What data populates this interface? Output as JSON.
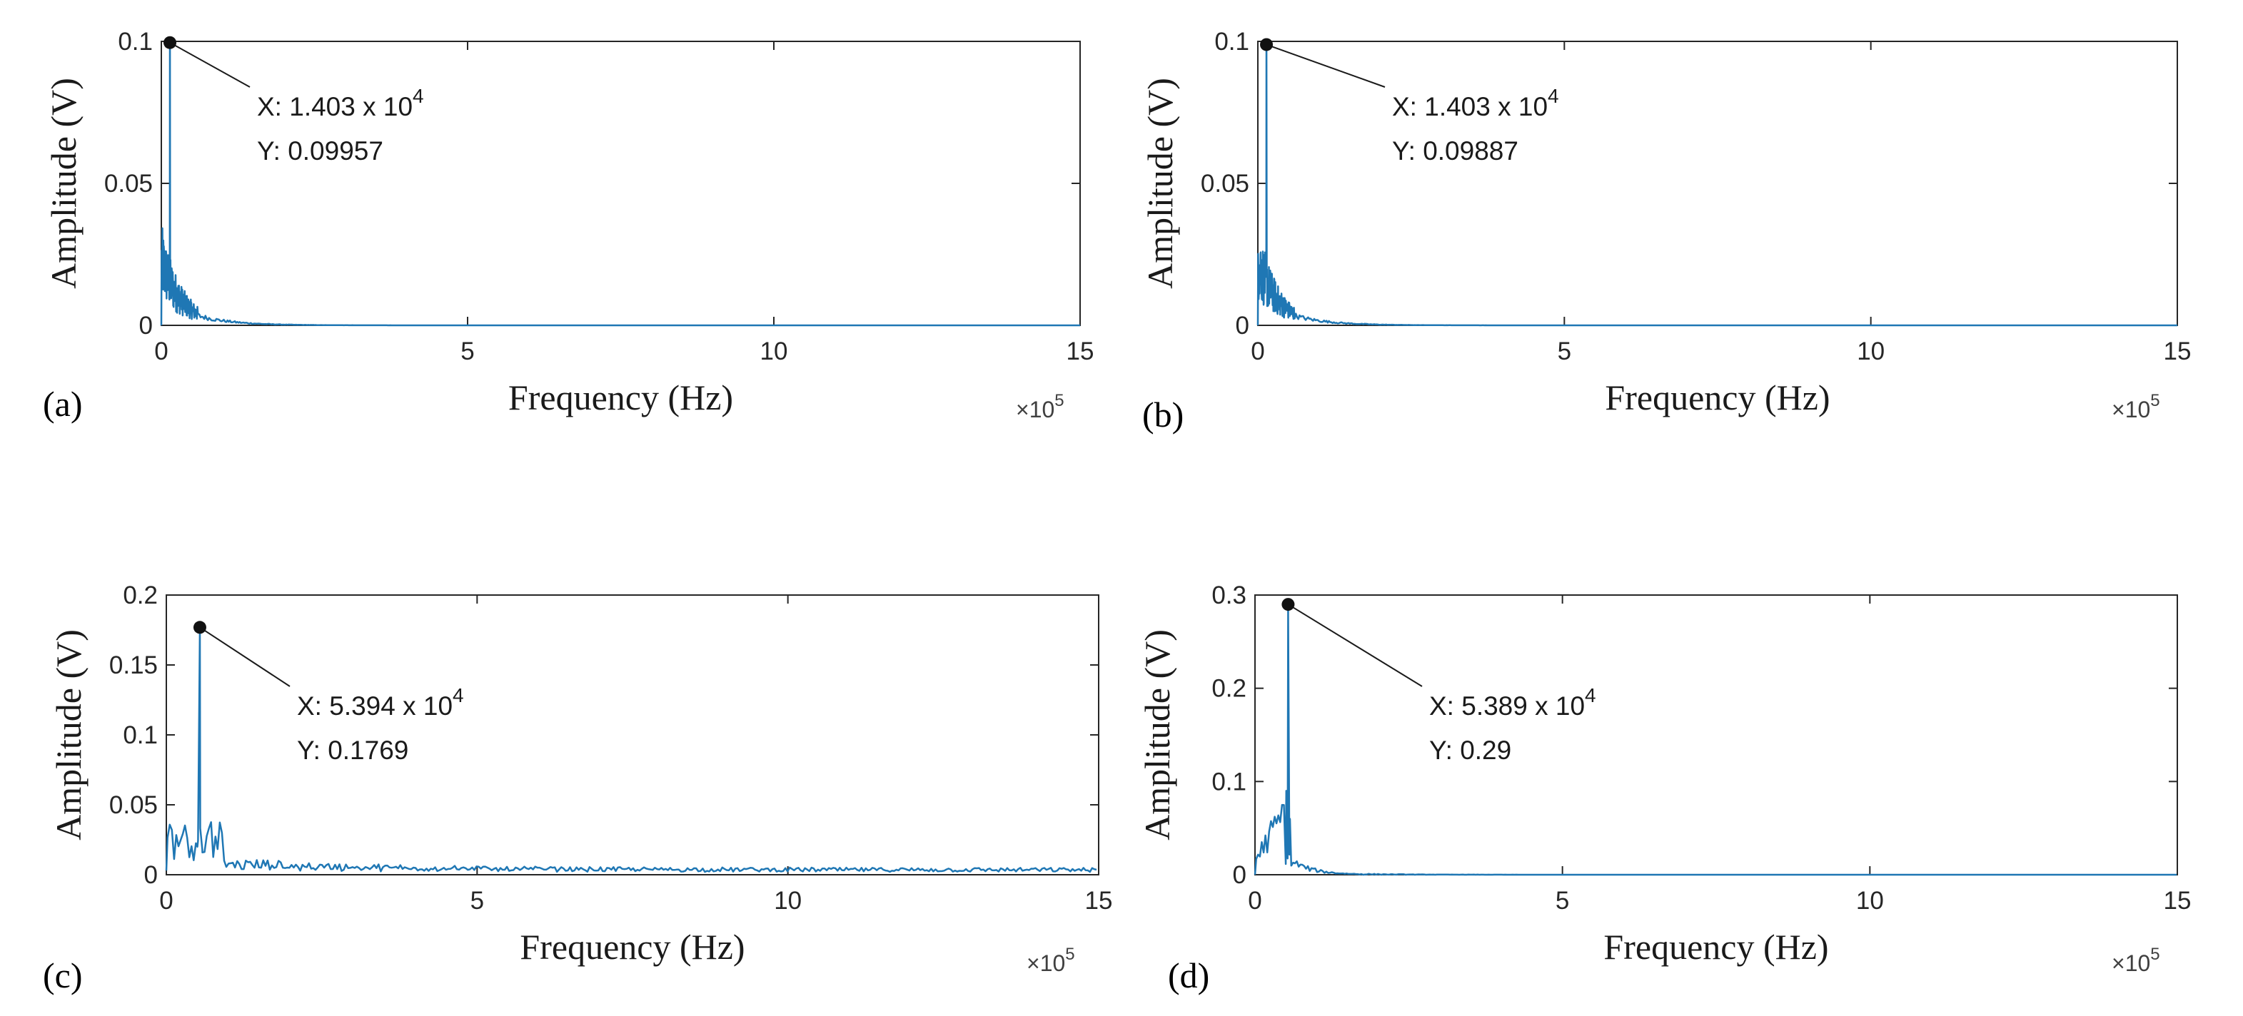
{
  "chart_data": [
    {
      "panel_label": "(a)",
      "type": "line",
      "xlabel": "Frequency (Hz)",
      "ylabel": "Amplitude (V)",
      "x_exponent_label": "×10",
      "x_exponent": "5",
      "xlim": [
        0,
        15
      ],
      "ylim": [
        0,
        0.1
      ],
      "xticks": [
        "0",
        "5",
        "10",
        "15"
      ],
      "yticks": [
        "0",
        "0.05",
        "0.1"
      ],
      "series_color": "#1f77b4",
      "peak": {
        "x": 0.1403,
        "y": 0.09957
      },
      "datatip": {
        "x_text": "X: 1.403 x 10",
        "x_exp": "4",
        "y_text": "Y: 0.09957"
      },
      "shape": "decay",
      "grid": false
    },
    {
      "panel_label": "(b)",
      "type": "line",
      "xlabel": "Frequency (Hz)",
      "ylabel": "Amplitude (V)",
      "x_exponent_label": "×10",
      "x_exponent": "5",
      "xlim": [
        0,
        15
      ],
      "ylim": [
        0,
        0.1
      ],
      "xticks": [
        "0",
        "5",
        "10",
        "15"
      ],
      "yticks": [
        "0",
        "0.05",
        "0.1"
      ],
      "series_color": "#1f77b4",
      "peak": {
        "x": 0.1403,
        "y": 0.09887
      },
      "datatip": {
        "x_text": "X: 1.403 x 10",
        "x_exp": "4",
        "y_text": "Y: 0.09887"
      },
      "shape": "decay",
      "grid": false
    },
    {
      "panel_label": "(c)",
      "type": "line",
      "xlabel": "Frequency (Hz)",
      "ylabel": "Amplitude (V)",
      "x_exponent_label": "×10",
      "x_exponent": "5",
      "xlim": [
        0,
        15
      ],
      "ylim": [
        0,
        0.2
      ],
      "xticks": [
        "0",
        "5",
        "10",
        "15"
      ],
      "yticks": [
        "0",
        "0.05",
        "0.1",
        "0.15",
        "0.2"
      ],
      "series_color": "#1f77b4",
      "peak": {
        "x": 0.5394,
        "y": 0.1769
      },
      "datatip": {
        "x_text": "X: 5.394 x 10",
        "x_exp": "4",
        "y_text": "Y: 0.1769"
      },
      "shape": "noisy",
      "grid": false
    },
    {
      "panel_label": "(d)",
      "type": "line",
      "xlabel": "Frequency (Hz)",
      "ylabel": "Amplitude (V)",
      "x_exponent_label": "×10",
      "x_exponent": "5",
      "xlim": [
        0,
        15
      ],
      "ylim": [
        0,
        0.3
      ],
      "xticks": [
        "0",
        "5",
        "10",
        "15"
      ],
      "yticks": [
        "0",
        "0.1",
        "0.2",
        "0.3"
      ],
      "series_color": "#1f77b4",
      "peak": {
        "x": 0.5389,
        "y": 0.29
      },
      "datatip": {
        "x_text": "X: 5.389 x 10",
        "x_exp": "4",
        "y_text": "Y: 0.29"
      },
      "shape": "narrow",
      "grid": false
    }
  ]
}
